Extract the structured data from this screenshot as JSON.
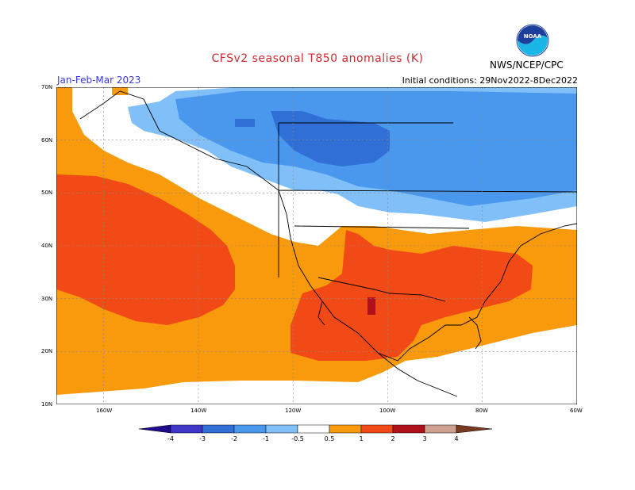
{
  "header": {
    "title": "CFSv2 seasonal T850 anomalies (K)",
    "period": "Jan-Feb-Mar 2023",
    "initial_conditions": "Initial conditions: 29Nov2022-8Dec2022",
    "agency": "NWS/NCEP/CPC",
    "logo_text": "NOAA"
  },
  "map": {
    "lat_labels": [
      "70N",
      "60N",
      "50N",
      "40N",
      "30N",
      "20N",
      "10N"
    ],
    "lon_labels": [
      "160W",
      "140W",
      "120W",
      "100W",
      "80W",
      "60W"
    ]
  },
  "legend": {
    "labels": [
      "-4",
      "-3",
      "-2",
      "-1",
      "-0.5",
      "0.5",
      "1",
      "2",
      "3",
      "4"
    ],
    "colors": {
      "below_-4": "#1e0a8c",
      "-4_-3": "#3f35c8",
      "-3_-2": "#2f6fd6",
      "-2_-1": "#4a97ee",
      "-1_-0.5": "#80bff8",
      "neutral": "#ffffff",
      "0.5_1": "#f99a0c",
      "1_2": "#f24a16",
      "2_3": "#b0101b",
      "3_4": "#cfa090",
      "above_4": "#7a3a22"
    }
  }
}
